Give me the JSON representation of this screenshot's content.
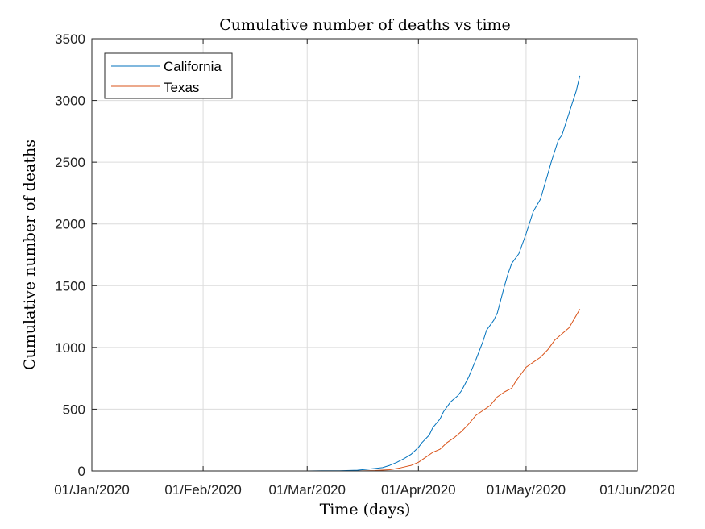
{
  "chart_data": {
    "type": "line",
    "title": "Cumulative number of deaths vs time",
    "xlabel": "Time (days)",
    "ylabel": "Cumulative number of deaths",
    "x_ticks": [
      "01/Jan/2020",
      "01/Feb/2020",
      "01/Mar/2020",
      "01/Apr/2020",
      "01/May/2020",
      "01/Jun/2020"
    ],
    "y_ticks": [
      0,
      500,
      1000,
      1500,
      2000,
      2500,
      3000,
      3500
    ],
    "xlim": [
      "2020-01-01",
      "2020-06-01"
    ],
    "ylim": [
      0,
      3500
    ],
    "grid": true,
    "legend_position": "top-left",
    "series": [
      {
        "name": "California",
        "color": "#0072BD",
        "points": [
          [
            "2020-01-22",
            0
          ],
          [
            "2020-02-15",
            0
          ],
          [
            "2020-03-01",
            0
          ],
          [
            "2020-03-05",
            1
          ],
          [
            "2020-03-10",
            2
          ],
          [
            "2020-03-15",
            6
          ],
          [
            "2020-03-20",
            20
          ],
          [
            "2020-03-22",
            27
          ],
          [
            "2020-03-24",
            45
          ],
          [
            "2020-03-26",
            70
          ],
          [
            "2020-03-28",
            100
          ],
          [
            "2020-03-30",
            135
          ],
          [
            "2020-04-01",
            190
          ],
          [
            "2020-04-02",
            230
          ],
          [
            "2020-04-04",
            290
          ],
          [
            "2020-04-05",
            350
          ],
          [
            "2020-04-07",
            420
          ],
          [
            "2020-04-08",
            480
          ],
          [
            "2020-04-10",
            560
          ],
          [
            "2020-04-12",
            610
          ],
          [
            "2020-04-13",
            650
          ],
          [
            "2020-04-15",
            760
          ],
          [
            "2020-04-17",
            900
          ],
          [
            "2020-04-19",
            1050
          ],
          [
            "2020-04-20",
            1140
          ],
          [
            "2020-04-22",
            1220
          ],
          [
            "2020-04-23",
            1280
          ],
          [
            "2020-04-25",
            1500
          ],
          [
            "2020-04-26",
            1600
          ],
          [
            "2020-04-27",
            1680
          ],
          [
            "2020-04-29",
            1760
          ],
          [
            "2020-05-01",
            1920
          ],
          [
            "2020-05-03",
            2100
          ],
          [
            "2020-05-05",
            2200
          ],
          [
            "2020-05-07",
            2400
          ],
          [
            "2020-05-08",
            2500
          ],
          [
            "2020-05-10",
            2680
          ],
          [
            "2020-05-11",
            2720
          ],
          [
            "2020-05-13",
            2900
          ],
          [
            "2020-05-15",
            3080
          ],
          [
            "2020-05-16",
            3200
          ]
        ]
      },
      {
        "name": "Texas",
        "color": "#D95319",
        "points": [
          [
            "2020-01-22",
            0
          ],
          [
            "2020-02-15",
            0
          ],
          [
            "2020-03-01",
            0
          ],
          [
            "2020-03-15",
            0
          ],
          [
            "2020-03-20",
            3
          ],
          [
            "2020-03-24",
            10
          ],
          [
            "2020-03-27",
            25
          ],
          [
            "2020-03-30",
            45
          ],
          [
            "2020-04-01",
            70
          ],
          [
            "2020-04-03",
            110
          ],
          [
            "2020-04-05",
            150
          ],
          [
            "2020-04-07",
            175
          ],
          [
            "2020-04-09",
            230
          ],
          [
            "2020-04-11",
            270
          ],
          [
            "2020-04-13",
            320
          ],
          [
            "2020-04-15",
            380
          ],
          [
            "2020-04-17",
            450
          ],
          [
            "2020-04-19",
            490
          ],
          [
            "2020-04-21",
            530
          ],
          [
            "2020-04-23",
            600
          ],
          [
            "2020-04-25",
            640
          ],
          [
            "2020-04-27",
            670
          ],
          [
            "2020-04-28",
            720
          ],
          [
            "2020-04-30",
            800
          ],
          [
            "2020-05-01",
            840
          ],
          [
            "2020-05-03",
            880
          ],
          [
            "2020-05-05",
            920
          ],
          [
            "2020-05-07",
            980
          ],
          [
            "2020-05-09",
            1060
          ],
          [
            "2020-05-11",
            1110
          ],
          [
            "2020-05-13",
            1160
          ],
          [
            "2020-05-14",
            1210
          ],
          [
            "2020-05-15",
            1260
          ],
          [
            "2020-05-16",
            1310
          ]
        ]
      }
    ]
  }
}
